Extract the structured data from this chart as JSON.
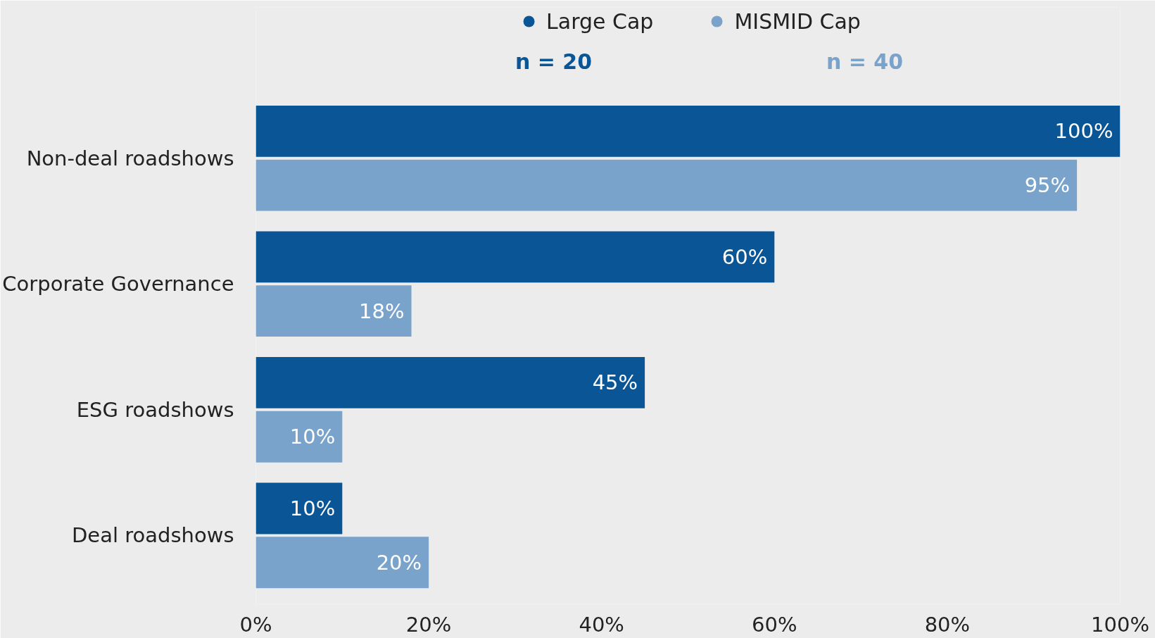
{
  "chart_data": {
    "type": "bar",
    "orientation": "horizontal",
    "categories": [
      "Non-deal roadshows",
      "Corporate Governance",
      "ESG roadshows",
      "Deal roadshows"
    ],
    "series": [
      {
        "name": "Large Cap",
        "color": "#0a5596",
        "values": [
          100,
          60,
          45,
          10
        ],
        "value_labels": [
          "100%",
          "60%",
          "45%",
          "10%"
        ]
      },
      {
        "name": "MISMID Cap",
        "color": "#79a3ca",
        "values": [
          95,
          18,
          10,
          20
        ],
        "value_labels": [
          "95%",
          "18%",
          "10%",
          "20%"
        ]
      }
    ],
    "annotations": [
      "n = 20",
      "n = 40"
    ],
    "xlim": [
      0,
      100
    ],
    "xticks": [
      {
        "value": 0,
        "label": "0%"
      },
      {
        "value": 20,
        "label": "20%"
      },
      {
        "value": 40,
        "label": "40%"
      },
      {
        "value": 60,
        "label": "60%"
      },
      {
        "value": 80,
        "label": "80%"
      },
      {
        "value": 100,
        "label": "100%"
      }
    ],
    "grid": false,
    "legend": "top"
  }
}
